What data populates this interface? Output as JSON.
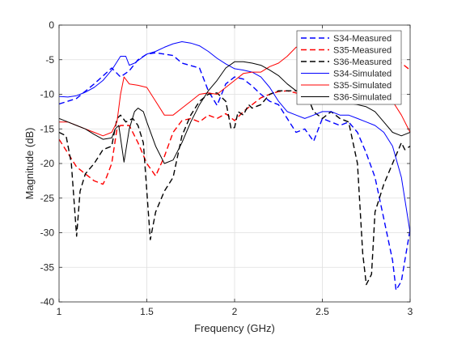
{
  "chart_data": {
    "type": "line",
    "title": "",
    "xlabel": "Frequency (GHz)",
    "ylabel": "Magnitude (dB)",
    "xlim": [
      1,
      3
    ],
    "ylim": [
      -40,
      0
    ],
    "xticks": [
      1,
      1.5,
      2,
      2.5,
      3
    ],
    "xtick_labels": [
      "1",
      "1.5",
      "2",
      "2.5",
      "3"
    ],
    "yticks": [
      -40,
      -35,
      -30,
      -25,
      -20,
      -15,
      -10,
      -5,
      0
    ],
    "ytick_labels": [
      "-40",
      "-35",
      "-30",
      "-25",
      "-20",
      "-15",
      "-10",
      "-5",
      "0"
    ],
    "grid": true,
    "legend_position": "top-right",
    "series": [
      {
        "name": "S34-Measured",
        "color": "#0000ff",
        "style": "dashed",
        "points": [
          [
            1,
            -11.4
          ],
          [
            1.1,
            -10.6
          ],
          [
            1.2,
            -8.5
          ],
          [
            1.3,
            -6.2
          ],
          [
            1.35,
            -7.5
          ],
          [
            1.4,
            -6.6
          ],
          [
            1.45,
            -5
          ],
          [
            1.5,
            -4.2
          ],
          [
            1.55,
            -4
          ],
          [
            1.6,
            -4.2
          ],
          [
            1.65,
            -4.4
          ],
          [
            1.7,
            -5.5
          ],
          [
            1.8,
            -6.2
          ],
          [
            1.85,
            -9.5
          ],
          [
            1.9,
            -11.6
          ],
          [
            1.95,
            -8.5
          ],
          [
            2,
            -7.5
          ],
          [
            2.05,
            -7.8
          ],
          [
            2.1,
            -8.8
          ],
          [
            2.15,
            -10
          ],
          [
            2.2,
            -11
          ],
          [
            2.25,
            -11.5
          ],
          [
            2.3,
            -13.5
          ],
          [
            2.35,
            -15.5
          ],
          [
            2.4,
            -15
          ],
          [
            2.45,
            -16.8
          ],
          [
            2.5,
            -13.5
          ],
          [
            2.55,
            -14
          ],
          [
            2.6,
            -14.5
          ],
          [
            2.65,
            -14
          ],
          [
            2.7,
            -15.5
          ],
          [
            2.75,
            -18.5
          ],
          [
            2.8,
            -22
          ],
          [
            2.85,
            -28
          ],
          [
            2.9,
            -34
          ],
          [
            2.92,
            -38.3
          ],
          [
            2.95,
            -37
          ],
          [
            2.97,
            -34
          ],
          [
            3,
            -29.5
          ]
        ]
      },
      {
        "name": "S35-Measured",
        "color": "#ff0000",
        "style": "dashed",
        "points": [
          [
            1,
            -16.5
          ],
          [
            1.05,
            -18.5
          ],
          [
            1.1,
            -20.5
          ],
          [
            1.15,
            -21.5
          ],
          [
            1.2,
            -22.5
          ],
          [
            1.25,
            -23
          ],
          [
            1.27,
            -22
          ],
          [
            1.3,
            -20
          ],
          [
            1.33,
            -15
          ],
          [
            1.35,
            -14.5
          ],
          [
            1.4,
            -14.5
          ],
          [
            1.45,
            -17
          ],
          [
            1.5,
            -20
          ],
          [
            1.55,
            -21.8
          ],
          [
            1.6,
            -19
          ],
          [
            1.65,
            -15.5
          ],
          [
            1.7,
            -13.8
          ],
          [
            1.75,
            -13.5
          ],
          [
            1.8,
            -14
          ],
          [
            1.85,
            -13
          ],
          [
            1.9,
            -13.5
          ],
          [
            1.95,
            -12.8
          ],
          [
            2,
            -13.8
          ],
          [
            2.05,
            -12.5
          ],
          [
            2.1,
            -11.5
          ],
          [
            2.15,
            -10.5
          ],
          [
            2.2,
            -10
          ],
          [
            2.25,
            -9.6
          ],
          [
            2.3,
            -9.5
          ],
          [
            2.35,
            -9.8
          ],
          [
            2.4,
            -10
          ],
          [
            2.45,
            -8.5
          ],
          [
            2.5,
            -7
          ],
          [
            2.55,
            -6.5
          ],
          [
            2.6,
            -6.2
          ],
          [
            2.65,
            -6
          ],
          [
            2.7,
            -5.5
          ],
          [
            2.75,
            -5.2
          ],
          [
            2.8,
            -5.3
          ],
          [
            2.85,
            -5.5
          ],
          [
            2.9,
            -5.2
          ],
          [
            2.95,
            -5.5
          ],
          [
            3,
            -6.5
          ]
        ]
      },
      {
        "name": "S36-Measured",
        "color": "#000000",
        "style": "dashed",
        "points": [
          [
            1,
            -15.5
          ],
          [
            1.04,
            -16
          ],
          [
            1.07,
            -20
          ],
          [
            1.1,
            -30.5
          ],
          [
            1.12,
            -24
          ],
          [
            1.15,
            -21.5
          ],
          [
            1.2,
            -20
          ],
          [
            1.25,
            -18
          ],
          [
            1.3,
            -17.5
          ],
          [
            1.33,
            -13.5
          ],
          [
            1.35,
            -13
          ],
          [
            1.38,
            -14
          ],
          [
            1.42,
            -13.5
          ],
          [
            1.45,
            -14.5
          ],
          [
            1.48,
            -17
          ],
          [
            1.5,
            -24
          ],
          [
            1.52,
            -31
          ],
          [
            1.55,
            -27
          ],
          [
            1.6,
            -24
          ],
          [
            1.65,
            -22
          ],
          [
            1.7,
            -16
          ],
          [
            1.75,
            -13
          ],
          [
            1.8,
            -11
          ],
          [
            1.85,
            -10
          ],
          [
            1.9,
            -9.8
          ],
          [
            1.95,
            -11
          ],
          [
            1.98,
            -15
          ],
          [
            2,
            -14.8
          ],
          [
            2.02,
            -12.5
          ],
          [
            2.05,
            -13
          ],
          [
            2.08,
            -11.5
          ],
          [
            2.1,
            -12
          ],
          [
            2.15,
            -11.5
          ],
          [
            2.2,
            -10
          ],
          [
            2.25,
            -9.5
          ],
          [
            2.3,
            -9.5
          ],
          [
            2.35,
            -9.5
          ],
          [
            2.4,
            -9.3
          ],
          [
            2.45,
            -12.5
          ],
          [
            2.5,
            -13.5
          ],
          [
            2.55,
            -12.5
          ],
          [
            2.6,
            -13.5
          ],
          [
            2.65,
            -14
          ],
          [
            2.7,
            -20
          ],
          [
            2.73,
            -33
          ],
          [
            2.75,
            -37.5
          ],
          [
            2.78,
            -36
          ],
          [
            2.8,
            -27
          ],
          [
            2.85,
            -23
          ],
          [
            2.9,
            -20
          ],
          [
            2.95,
            -17
          ],
          [
            2.97,
            -18
          ],
          [
            3,
            -17.5
          ]
        ]
      },
      {
        "name": "S34-Simulated",
        "color": "#0000ff",
        "style": "solid",
        "points": [
          [
            1,
            -10.3
          ],
          [
            1.05,
            -10.4
          ],
          [
            1.1,
            -10.2
          ],
          [
            1.15,
            -9.7
          ],
          [
            1.2,
            -9
          ],
          [
            1.25,
            -8
          ],
          [
            1.3,
            -6.5
          ],
          [
            1.35,
            -4.5
          ],
          [
            1.38,
            -4.5
          ],
          [
            1.4,
            -5.8
          ],
          [
            1.43,
            -5.5
          ],
          [
            1.5,
            -4.2
          ],
          [
            1.55,
            -3.8
          ],
          [
            1.6,
            -3.2
          ],
          [
            1.65,
            -2.7
          ],
          [
            1.7,
            -2.4
          ],
          [
            1.75,
            -2.6
          ],
          [
            1.8,
            -3
          ],
          [
            1.85,
            -3.8
          ],
          [
            1.9,
            -4.8
          ],
          [
            1.95,
            -5.6
          ],
          [
            2,
            -6.3
          ],
          [
            2.05,
            -6.5
          ],
          [
            2.1,
            -6.8
          ],
          [
            2.15,
            -7.5
          ],
          [
            2.2,
            -9
          ],
          [
            2.25,
            -11
          ],
          [
            2.3,
            -12.5
          ],
          [
            2.35,
            -13
          ],
          [
            2.4,
            -13.5
          ],
          [
            2.45,
            -13
          ],
          [
            2.5,
            -12.5
          ],
          [
            2.55,
            -12.5
          ],
          [
            2.6,
            -13
          ],
          [
            2.65,
            -13
          ],
          [
            2.7,
            -13.5
          ],
          [
            2.75,
            -14
          ],
          [
            2.8,
            -14.5
          ],
          [
            2.85,
            -15.5
          ],
          [
            2.9,
            -17.5
          ],
          [
            2.95,
            -22
          ],
          [
            3,
            -30
          ]
        ]
      },
      {
        "name": "S35-Simulated",
        "color": "#ff0000",
        "style": "solid",
        "points": [
          [
            1,
            -14
          ],
          [
            1.05,
            -14
          ],
          [
            1.1,
            -14.5
          ],
          [
            1.15,
            -15
          ],
          [
            1.2,
            -15.5
          ],
          [
            1.25,
            -16
          ],
          [
            1.3,
            -15.5
          ],
          [
            1.33,
            -14
          ],
          [
            1.35,
            -10
          ],
          [
            1.37,
            -7.5
          ],
          [
            1.4,
            -8.5
          ],
          [
            1.45,
            -8.7
          ],
          [
            1.5,
            -9
          ],
          [
            1.55,
            -11
          ],
          [
            1.6,
            -13
          ],
          [
            1.65,
            -13
          ],
          [
            1.7,
            -12
          ],
          [
            1.75,
            -11
          ],
          [
            1.8,
            -10
          ],
          [
            1.85,
            -9.8
          ],
          [
            1.9,
            -10
          ],
          [
            1.95,
            -9
          ],
          [
            2,
            -8
          ],
          [
            2.05,
            -7
          ],
          [
            2.1,
            -6.8
          ],
          [
            2.15,
            -6.8
          ],
          [
            2.2,
            -6
          ],
          [
            2.25,
            -5.5
          ],
          [
            2.3,
            -4.5
          ],
          [
            2.35,
            -3.2
          ],
          [
            2.4,
            -3
          ],
          [
            2.45,
            -3
          ],
          [
            2.5,
            -3.2
          ],
          [
            2.55,
            -3.5
          ],
          [
            2.6,
            -4.5
          ],
          [
            2.65,
            -5.5
          ],
          [
            2.7,
            -6.5
          ],
          [
            2.75,
            -7.5
          ],
          [
            2.8,
            -8.5
          ],
          [
            2.85,
            -9.5
          ],
          [
            2.9,
            -11
          ],
          [
            2.95,
            -13
          ],
          [
            3,
            -15.5
          ]
        ]
      },
      {
        "name": "S36-Simulated",
        "color": "#000000",
        "style": "solid",
        "points": [
          [
            1,
            -13.5
          ],
          [
            1.05,
            -14
          ],
          [
            1.1,
            -14.5
          ],
          [
            1.15,
            -15
          ],
          [
            1.2,
            -15.8
          ],
          [
            1.25,
            -16.5
          ],
          [
            1.3,
            -16.3
          ],
          [
            1.32,
            -15
          ],
          [
            1.34,
            -14.5
          ],
          [
            1.37,
            -19.8
          ],
          [
            1.4,
            -15
          ],
          [
            1.43,
            -12.5
          ],
          [
            1.45,
            -12
          ],
          [
            1.48,
            -12.5
          ],
          [
            1.5,
            -14
          ],
          [
            1.55,
            -17.5
          ],
          [
            1.6,
            -20
          ],
          [
            1.65,
            -19.5
          ],
          [
            1.7,
            -17
          ],
          [
            1.75,
            -14
          ],
          [
            1.8,
            -11.5
          ],
          [
            1.85,
            -9.5
          ],
          [
            1.9,
            -8
          ],
          [
            1.95,
            -6.2
          ],
          [
            2,
            -5.3
          ],
          [
            2.05,
            -5.3
          ],
          [
            2.1,
            -5.5
          ],
          [
            2.15,
            -5.8
          ],
          [
            2.2,
            -6.5
          ],
          [
            2.25,
            -7.3
          ],
          [
            2.3,
            -8.5
          ],
          [
            2.35,
            -9.5
          ],
          [
            2.4,
            -9.8
          ],
          [
            2.45,
            -9.5
          ],
          [
            2.5,
            -9.8
          ],
          [
            2.55,
            -10.5
          ],
          [
            2.6,
            -11
          ],
          [
            2.65,
            -11.3
          ],
          [
            2.7,
            -11.5
          ],
          [
            2.75,
            -11.8
          ],
          [
            2.8,
            -12.5
          ],
          [
            2.85,
            -14
          ],
          [
            2.9,
            -15.5
          ],
          [
            2.95,
            -16
          ],
          [
            3,
            -15.5
          ]
        ]
      }
    ]
  }
}
